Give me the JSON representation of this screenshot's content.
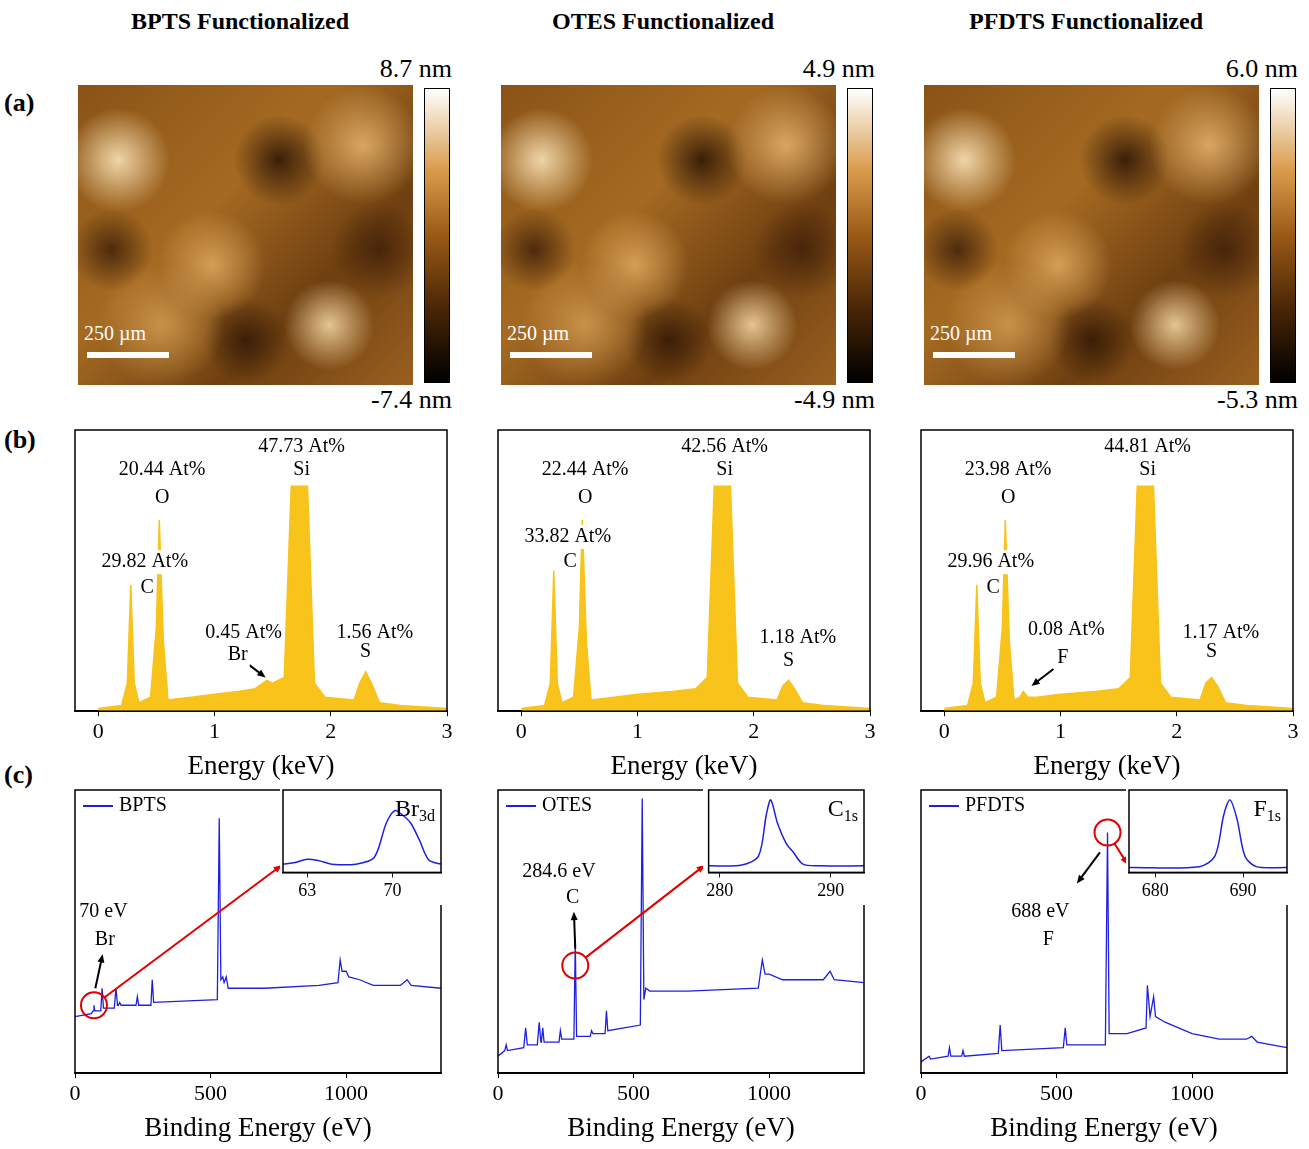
{
  "column_titles": [
    "BPTS Functionalized",
    "OTES Functionalized",
    "PFDTS Functionalized"
  ],
  "row_letters": [
    "(a)",
    "(b)",
    "(c)"
  ],
  "afm": [
    {
      "type": "image",
      "scale_bar": "250 µm",
      "colorbar": {
        "range": [
          -7.4,
          8.7
        ],
        "labels": [
          {
            "value": 8.7,
            "label": "8.7 nm"
          },
          {
            "value": -7.4,
            "label": "-7.4 nm"
          }
        ]
      }
    },
    {
      "type": "image",
      "scale_bar": "250 µm",
      "colorbar": {
        "range": [
          -4.9,
          4.9
        ],
        "labels": [
          {
            "value": 4.9,
            "label": "4.9 nm"
          },
          {
            "value": -4.9,
            "label": "-4.9 nm"
          }
        ]
      }
    },
    {
      "type": "image",
      "scale_bar": "250 µm",
      "colorbar": {
        "range": [
          -5.3,
          6.0
        ],
        "labels": [
          {
            "value": 6.0,
            "label": "6.0 nm"
          },
          {
            "value": -5.3,
            "label": "-5.3 nm"
          }
        ]
      }
    }
  ],
  "chart_data": [
    {
      "type": "area",
      "x_label": "Energy (keV)",
      "color": "#f8c31b",
      "grid": false,
      "tick_labels": "x",
      "xlim": [
        -0.2,
        3
      ],
      "xticks": [
        0,
        1,
        2,
        3
      ],
      "ylim": [
        0,
        100
      ],
      "x": [
        0,
        0.2,
        0.25,
        0.28,
        0.31,
        0.35,
        0.45,
        0.5,
        0.525,
        0.56,
        0.6,
        0.8,
        1.0,
        1.2,
        1.35,
        1.45,
        1.5,
        1.6,
        1.66,
        1.8,
        1.86,
        1.95,
        2.2,
        2.25,
        2.3,
        2.35,
        2.42,
        2.6,
        3
      ],
      "values": [
        1,
        2,
        10,
        45,
        10,
        3,
        5,
        30,
        68,
        25,
        4,
        5,
        6,
        7,
        8,
        11,
        10,
        12,
        80,
        80,
        10,
        5,
        4,
        10,
        14,
        10,
        3,
        2,
        1
      ],
      "annotations": [
        {
          "text": "20.44 At%",
          "x": 0.55,
          "y": 86
        },
        {
          "text": "O",
          "x": 0.55,
          "y": 76
        },
        {
          "text": "29.82 At%",
          "x": 0.4,
          "y": 53
        },
        {
          "text": "C",
          "x": 0.42,
          "y": 44
        },
        {
          "text": "0.45 At%",
          "x": 1.25,
          "y": 28
        },
        {
          "text": "Br",
          "x": 1.2,
          "y": 20
        },
        {
          "text": "47.73 At%",
          "x": 1.75,
          "y": 94
        },
        {
          "text": "Si",
          "x": 1.75,
          "y": 86
        },
        {
          "text": "1.56 At%",
          "x": 2.38,
          "y": 28
        },
        {
          "text": "S",
          "x": 2.3,
          "y": 21
        }
      ],
      "arrows": [
        {
          "from": [
            1.28,
            17
          ],
          "to": [
            1.44,
            12
          ]
        }
      ]
    },
    {
      "type": "area",
      "x_label": "Energy (keV)",
      "color": "#f8c31b",
      "grid": false,
      "tick_labels": "x",
      "xlim": [
        -0.2,
        3
      ],
      "xticks": [
        0,
        1,
        2,
        3
      ],
      "ylim": [
        0,
        100
      ],
      "x": [
        0,
        0.2,
        0.25,
        0.28,
        0.31,
        0.35,
        0.45,
        0.5,
        0.525,
        0.56,
        0.6,
        0.8,
        1.0,
        1.3,
        1.5,
        1.6,
        1.66,
        1.8,
        1.86,
        1.95,
        2.2,
        2.25,
        2.3,
        2.35,
        2.42,
        2.6,
        3
      ],
      "values": [
        1,
        2,
        10,
        50,
        10,
        3,
        5,
        30,
        68,
        25,
        4,
        5,
        6,
        7,
        8,
        12,
        80,
        80,
        10,
        5,
        4,
        9,
        11,
        8,
        3,
        2,
        1
      ],
      "annotations": [
        {
          "text": "22.44 At%",
          "x": 0.55,
          "y": 86
        },
        {
          "text": "O",
          "x": 0.55,
          "y": 76
        },
        {
          "text": "33.82 At%",
          "x": 0.4,
          "y": 62
        },
        {
          "text": "C",
          "x": 0.42,
          "y": 53
        },
        {
          "text": "42.56 At%",
          "x": 1.75,
          "y": 94
        },
        {
          "text": "Si",
          "x": 1.75,
          "y": 86
        },
        {
          "text": "1.18 At%",
          "x": 2.38,
          "y": 26
        },
        {
          "text": "S",
          "x": 2.3,
          "y": 18
        }
      ],
      "arrows": []
    },
    {
      "type": "area",
      "x_label": "Energy (keV)",
      "color": "#f8c31b",
      "grid": false,
      "tick_labels": "x",
      "xlim": [
        -0.2,
        3
      ],
      "xticks": [
        0,
        1,
        2,
        3
      ],
      "ylim": [
        0,
        100
      ],
      "x": [
        0,
        0.2,
        0.25,
        0.28,
        0.31,
        0.35,
        0.45,
        0.5,
        0.525,
        0.56,
        0.6,
        0.65,
        0.68,
        0.72,
        0.8,
        1.0,
        1.3,
        1.5,
        1.6,
        1.66,
        1.8,
        1.86,
        1.95,
        2.2,
        2.25,
        2.3,
        2.35,
        2.42,
        2.6,
        3
      ],
      "values": [
        1,
        2,
        10,
        45,
        10,
        3,
        5,
        30,
        68,
        25,
        4,
        5,
        7,
        5,
        5,
        6,
        7,
        8,
        12,
        80,
        80,
        10,
        5,
        4,
        10,
        12,
        9,
        3,
        2,
        1
      ],
      "annotations": [
        {
          "text": "23.98 At%",
          "x": 0.55,
          "y": 86
        },
        {
          "text": "O",
          "x": 0.55,
          "y": 76
        },
        {
          "text": "29.96 At%",
          "x": 0.4,
          "y": 53
        },
        {
          "text": "C",
          "x": 0.42,
          "y": 44
        },
        {
          "text": "0.08 At%",
          "x": 1.05,
          "y": 29
        },
        {
          "text": "F",
          "x": 1.02,
          "y": 19
        },
        {
          "text": "44.81 At%",
          "x": 1.75,
          "y": 94
        },
        {
          "text": "Si",
          "x": 1.75,
          "y": 86
        },
        {
          "text": "1.17 At%",
          "x": 2.38,
          "y": 28
        },
        {
          "text": "S",
          "x": 2.3,
          "y": 21
        }
      ],
      "arrows": [
        {
          "from": [
            0.94,
            15
          ],
          "to": [
            0.75,
            9
          ]
        }
      ]
    },
    {
      "type": "line",
      "x_label": "Binding Energy (eV)",
      "grid": false,
      "tick_labels": "x",
      "legend": "upper left",
      "xlim": [
        0,
        1350
      ],
      "xticks": [
        0,
        500,
        1000
      ],
      "ylim": [
        0,
        100
      ],
      "x": [
        0,
        60,
        67,
        70,
        73,
        95,
        100,
        105,
        145,
        151,
        157,
        160,
        165,
        170,
        225,
        230,
        235,
        280,
        285,
        290,
        525,
        532,
        538,
        545,
        550,
        558,
        565,
        700,
        900,
        970,
        978,
        985,
        1000,
        1010,
        1050,
        1100,
        1200,
        1225,
        1240,
        1350
      ],
      "series": [
        {
          "name": "BPTS",
          "color": "#1f1fe0",
          "values": [
            20,
            21,
            22,
            24,
            22,
            22,
            30,
            23,
            23,
            30,
            24,
            24,
            25,
            24,
            24,
            27,
            24,
            24,
            33,
            25,
            26,
            90,
            33,
            34,
            32,
            34,
            30,
            30,
            31,
            32,
            40,
            36,
            36,
            34,
            33,
            31,
            31,
            33,
            31,
            30
          ]
        }
      ],
      "annotations": [
        {
          "text": "70 eV",
          "x": 105,
          "y": 57
        },
        {
          "text": "Br",
          "x": 110,
          "y": 47
        }
      ],
      "arrows": [
        {
          "from": [
            75,
            30
          ],
          "to": [
            102,
            42
          ]
        }
      ],
      "marked_peak": {
        "x": 70,
        "y": 24
      },
      "inset": {
        "type": "line",
        "title": "Br3d",
        "color": "#1f1fe0",
        "grid": false,
        "tick_labels": "x",
        "xlim": [
          61,
          74
        ],
        "xticks": [
          63,
          70
        ],
        "ylim": [
          0,
          100
        ],
        "x": [
          61,
          62,
          63,
          64,
          65,
          67,
          68.5,
          69.5,
          70.2,
          70.8,
          71.5,
          72.2,
          73,
          74
        ],
        "values": [
          10,
          12,
          16,
          14,
          10,
          10,
          18,
          60,
          75,
          70,
          60,
          40,
          15,
          10
        ]
      }
    },
    {
      "type": "line",
      "x_label": "Binding Energy (eV)",
      "grid": false,
      "tick_labels": "x",
      "legend": "upper left",
      "xlim": [
        0,
        1350
      ],
      "xticks": [
        0,
        500,
        1000
      ],
      "ylim": [
        0,
        100
      ],
      "x": [
        0,
        25,
        30,
        35,
        95,
        102,
        108,
        145,
        152,
        158,
        160,
        165,
        170,
        225,
        230,
        235,
        280,
        285,
        290,
        340,
        345,
        350,
        395,
        400,
        405,
        525,
        532,
        538,
        545,
        560,
        700,
        960,
        975,
        985,
        1000,
        1050,
        1200,
        1225,
        1240,
        1350
      ],
      "series": [
        {
          "name": "OTES",
          "color": "#1f1fe0",
          "values": [
            6,
            8,
            10,
            8,
            9,
            16,
            10,
            10,
            18,
            11,
            11,
            16,
            11,
            11,
            15,
            12,
            12,
            46,
            13,
            13,
            15,
            14,
            14,
            22,
            15,
            17,
            97,
            26,
            30,
            29,
            29,
            30,
            40,
            35,
            35,
            33,
            33,
            36,
            33,
            32
          ]
        }
      ],
      "annotations": [
        {
          "text": "284.6 eV",
          "x": 225,
          "y": 71
        },
        {
          "text": "C",
          "x": 275,
          "y": 62
        }
      ],
      "arrows": [
        {
          "from": [
            285,
            44
          ],
          "to": [
            280,
            57
          ]
        }
      ],
      "marked_peak": {
        "x": 285,
        "y": 38
      },
      "inset": {
        "type": "line",
        "title": "C1s",
        "color": "#1f1fe0",
        "grid": false,
        "tick_labels": "x",
        "xlim": [
          279,
          293
        ],
        "xticks": [
          280,
          290
        ],
        "ylim": [
          0,
          100
        ],
        "x": [
          279,
          282,
          283.5,
          284.2,
          284.6,
          285.2,
          286,
          286.6,
          287.5,
          289,
          293
        ],
        "values": [
          8,
          9,
          20,
          70,
          88,
          60,
          35,
          25,
          10,
          8,
          8
        ]
      }
    },
    {
      "type": "line",
      "x_label": "Binding Energy (eV)",
      "grid": false,
      "tick_labels": "x",
      "legend": "upper left",
      "xlim": [
        0,
        1350
      ],
      "xticks": [
        0,
        500,
        1000
      ],
      "ylim": [
        0,
        100
      ],
      "x": [
        0,
        30,
        35,
        100,
        105,
        110,
        150,
        155,
        160,
        285,
        292,
        298,
        525,
        532,
        538,
        680,
        688,
        694,
        700,
        760,
        830,
        835,
        845,
        858,
        865,
        900,
        1000,
        1100,
        1200,
        1220,
        1240,
        1350
      ],
      "series": [
        {
          "name": "PFDTS",
          "color": "#1f1fe0",
          "values": [
            4,
            6,
            5,
            6,
            9,
            6,
            6,
            8,
            6,
            7,
            17,
            8,
            9,
            16,
            10,
            10,
            85,
            14,
            14,
            14,
            16,
            31,
            20,
            27,
            20,
            18,
            14,
            12,
            12,
            13,
            11,
            9
          ]
        }
      ],
      "annotations": [
        {
          "text": "688 eV",
          "x": 440,
          "y": 57
        },
        {
          "text": "F",
          "x": 470,
          "y": 47
        }
      ],
      "arrows": [
        {
          "from": [
            660,
            78
          ],
          "to": [
            575,
            67
          ]
        }
      ],
      "marked_peak": {
        "x": 688,
        "y": 85
      },
      "inset": {
        "type": "line",
        "title": "F1s",
        "color": "#1f1fe0",
        "grid": false,
        "tick_labels": "x",
        "xlim": [
          677,
          695
        ],
        "xticks": [
          680,
          690
        ],
        "ylim": [
          0,
          100
        ],
        "x": [
          677,
          685,
          686.8,
          687.8,
          688.5,
          689.3,
          690.2,
          691.5,
          695
        ],
        "values": [
          6,
          7,
          20,
          70,
          88,
          65,
          20,
          7,
          6
        ]
      }
    }
  ]
}
